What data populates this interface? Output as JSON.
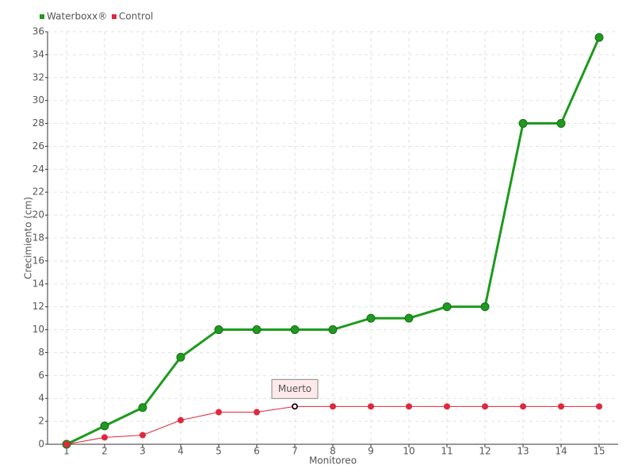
{
  "chart_data": {
    "type": "line",
    "x_label": "Monitoreo",
    "y_label": "Crecimiento (cm)",
    "categories": [
      "1",
      "2",
      "3",
      "4",
      "5",
      "6",
      "7",
      "8",
      "9",
      "10",
      "11",
      "12",
      "13",
      "14",
      "15"
    ],
    "series": [
      {
        "name": "Waterboxx®",
        "color": "#1e9a1e",
        "values": [
          0,
          1.6,
          3.2,
          7.6,
          10,
          10,
          10,
          10,
          11,
          11,
          12,
          12,
          28,
          28,
          35.5
        ]
      },
      {
        "name": "Control",
        "color": "#e0283c",
        "values": [
          0,
          0.6,
          0.8,
          2.1,
          2.8,
          2.8,
          3.3,
          3.3,
          3.3,
          3.3,
          3.3,
          3.3,
          3.3,
          3.3,
          3.3
        ]
      }
    ],
    "annotation": "Muerto",
    "ylim": [
      0,
      36
    ],
    "yticks": [
      0,
      2,
      4,
      6,
      8,
      10,
      12,
      14,
      16,
      18,
      20,
      22,
      24,
      26,
      28,
      30,
      32,
      34,
      36
    ],
    "grid": true,
    "legend": "top-left"
  }
}
